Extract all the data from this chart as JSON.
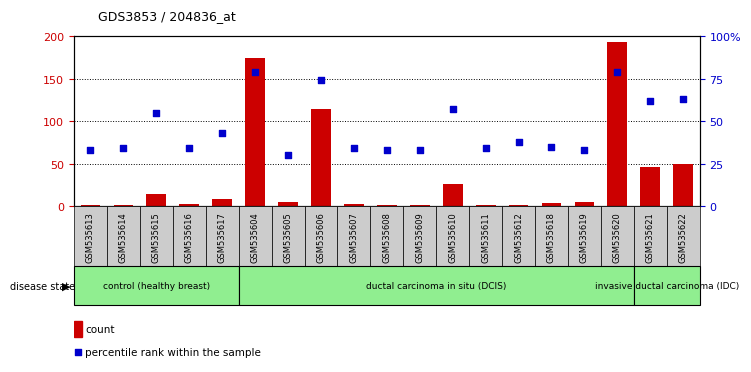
{
  "title": "GDS3853 / 204836_at",
  "samples": [
    "GSM535613",
    "GSM535614",
    "GSM535615",
    "GSM535616",
    "GSM535617",
    "GSM535604",
    "GSM535605",
    "GSM535606",
    "GSM535607",
    "GSM535608",
    "GSM535609",
    "GSM535610",
    "GSM535611",
    "GSM535612",
    "GSM535618",
    "GSM535619",
    "GSM535620",
    "GSM535621",
    "GSM535622"
  ],
  "counts": [
    2,
    2,
    14,
    3,
    8,
    175,
    5,
    115,
    3,
    2,
    2,
    26,
    2,
    2,
    4,
    5,
    193,
    46,
    50
  ],
  "percentiles": [
    33,
    34,
    55,
    34,
    43,
    79,
    30,
    74,
    34,
    33,
    33,
    57,
    34,
    38,
    35,
    33,
    79,
    62,
    63
  ],
  "groups": [
    {
      "label": "control (healthy breast)",
      "start": 0,
      "end": 5
    },
    {
      "label": "ductal carcinoma in situ (DCIS)",
      "start": 5,
      "end": 17
    },
    {
      "label": "invasive ductal carcinoma (IDC)",
      "start": 17,
      "end": 19
    }
  ],
  "ylim_left": [
    0,
    200
  ],
  "yticks_left": [
    0,
    50,
    100,
    150,
    200
  ],
  "yticks_right_labels": [
    "0",
    "25",
    "50",
    "75",
    "100%"
  ],
  "bar_color": "#cc0000",
  "scatter_color": "#0000cc",
  "left_tick_color": "#cc0000",
  "right_tick_color": "#0000cc",
  "sample_box_color": "#cccccc",
  "sample_box_edge": "#000000",
  "group_box_color": "#90ee90",
  "group_box_edge": "#000000",
  "legend_count_color": "#cc0000",
  "legend_pct_color": "#0000cc"
}
